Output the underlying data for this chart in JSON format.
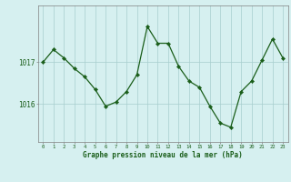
{
  "x": [
    0,
    1,
    2,
    3,
    4,
    5,
    6,
    7,
    8,
    9,
    10,
    11,
    12,
    13,
    14,
    15,
    16,
    17,
    18,
    19,
    20,
    21,
    22,
    23
  ],
  "y": [
    1017.0,
    1017.3,
    1017.1,
    1016.85,
    1016.65,
    1016.35,
    1015.95,
    1016.05,
    1016.3,
    1016.7,
    1017.85,
    1017.45,
    1017.45,
    1016.9,
    1016.55,
    1016.4,
    1015.95,
    1015.55,
    1015.45,
    1016.3,
    1016.55,
    1017.05,
    1017.55,
    1017.1
  ],
  "line_color": "#1a5e1a",
  "marker_color": "#1a5e1a",
  "bg_color": "#d6f0f0",
  "grid_color": "#a8cece",
  "axis_color": "#808080",
  "xlabel": "Graphe pression niveau de la mer (hPa)",
  "yticks": [
    1016,
    1017
  ],
  "ylim": [
    1015.1,
    1018.35
  ],
  "xlim": [
    -0.5,
    23.5
  ],
  "xticks": [
    0,
    1,
    2,
    3,
    4,
    5,
    6,
    7,
    8,
    9,
    10,
    11,
    12,
    13,
    14,
    15,
    16,
    17,
    18,
    19,
    20,
    21,
    22,
    23
  ],
  "figsize": [
    3.2,
    2.0
  ],
  "dpi": 100
}
